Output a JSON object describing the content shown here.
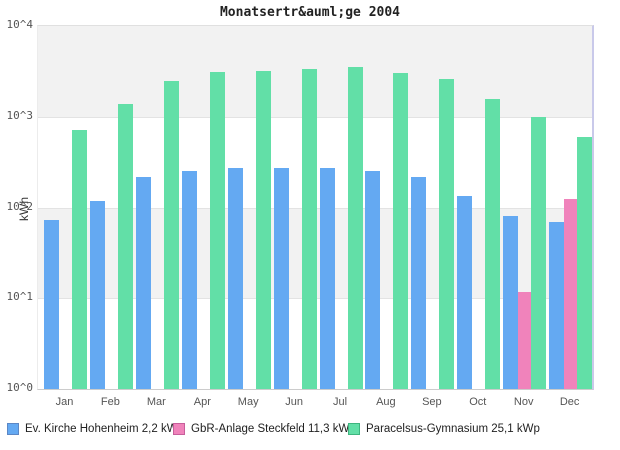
{
  "chart_data": {
    "type": "bar",
    "title": "Monatsertr&auml;ge 2004",
    "ylabel": "kWh",
    "y_scale": "log10",
    "ylim": [
      1,
      10000
    ],
    "y_ticks": [
      "10^0",
      "10^1",
      "10^2",
      "10^3",
      "10^4"
    ],
    "grid": "horizontal decade lines with alternating gray/white bands",
    "legend_position": "bottom",
    "categories": [
      "Jan",
      "Feb",
      "Mar",
      "Apr",
      "May",
      "Jun",
      "Jul",
      "Aug",
      "Sep",
      "Oct",
      "Nov",
      "Dec"
    ],
    "series": [
      {
        "name": "Ev. Kirche Hohenheim 2,2 kWp",
        "color": "#64a9f2",
        "border_color": "#5c87c5",
        "values": [
          73,
          118,
          215,
          250,
          270,
          272,
          275,
          250,
          215,
          134,
          80,
          69
        ]
      },
      {
        "name": "GbR-Anlage Steckfeld 11,3 kWp",
        "color": "#f083bb",
        "border_color": "#c75f9b",
        "values": [
          0,
          0,
          0,
          0,
          0,
          0,
          0,
          0,
          0,
          0,
          11.6,
          125
        ]
      },
      {
        "name": "Paracelsus-Gymnasium 25,1 kWp",
        "color": "#62dfa7",
        "border_color": "#3eb57f",
        "values": [
          720,
          1370,
          2500,
          3080,
          3190,
          3400,
          3530,
          3030,
          2620,
          1570,
          990,
          600
        ]
      }
    ]
  }
}
